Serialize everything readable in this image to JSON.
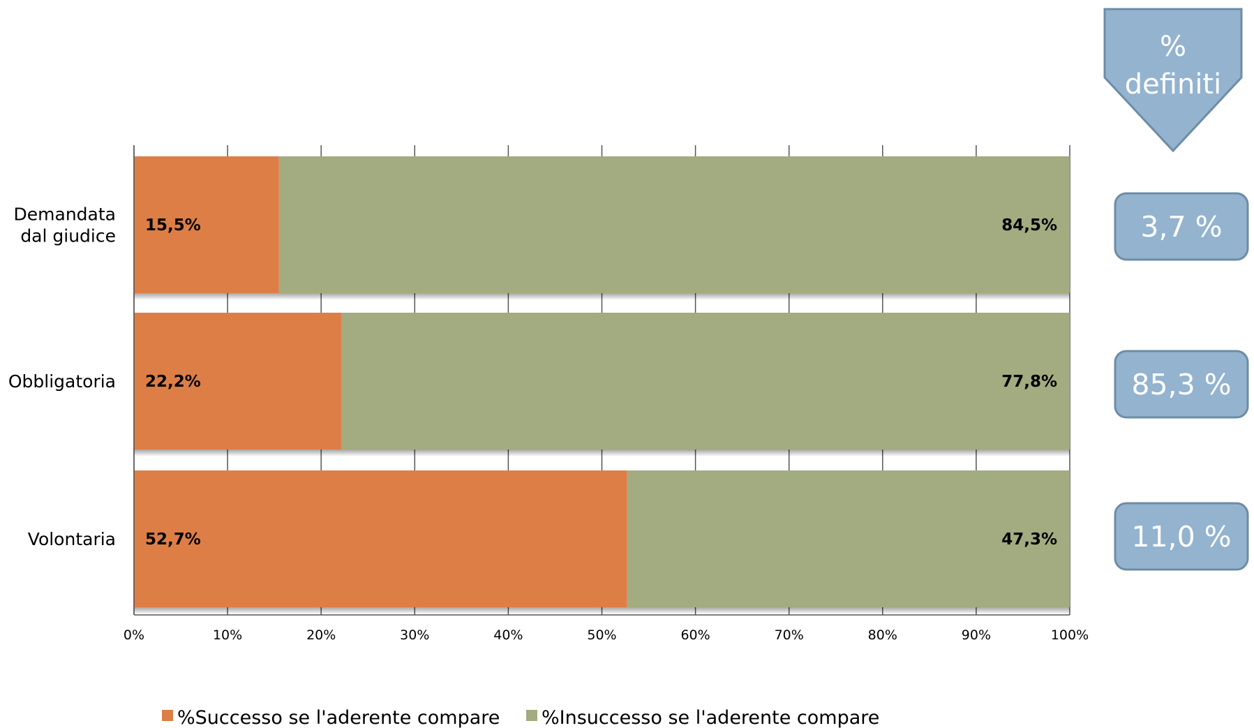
{
  "chart_data": {
    "type": "bar",
    "orientation": "horizontal",
    "stacked": true,
    "categories": [
      "Demandata dal giudice",
      "Obbligatoria",
      "Volontaria"
    ],
    "category_lines": [
      [
        "Demandata",
        "dal giudice"
      ],
      [
        "Obbligatoria"
      ],
      [
        "Volontaria"
      ]
    ],
    "series": [
      {
        "name": "%Successo se l'aderente compare",
        "values": [
          15.5,
          22.2,
          52.7
        ],
        "labels": [
          "15,5%",
          "22,2%",
          "52,7%"
        ],
        "color": "#dd7e47"
      },
      {
        "name": "%Insuccesso se l'aderente compare",
        "values": [
          84.5,
          77.8,
          47.3
        ],
        "labels": [
          "84,5%",
          "77,8%",
          "47,3%"
        ],
        "color": "#a3ab80"
      }
    ],
    "xlim": [
      0,
      100
    ],
    "xticks": [
      "0%",
      "10%",
      "20%",
      "30%",
      "40%",
      "50%",
      "60%",
      "70%",
      "80%",
      "90%",
      "100%"
    ],
    "grid": true,
    "legend": "bottom"
  },
  "callout": {
    "lines": [
      "%",
      "definiti"
    ],
    "color": "#93b3cf",
    "border": "#6d8ca6"
  },
  "side_values": [
    "3,7 %",
    "85,3 %",
    "11,0 %"
  ]
}
